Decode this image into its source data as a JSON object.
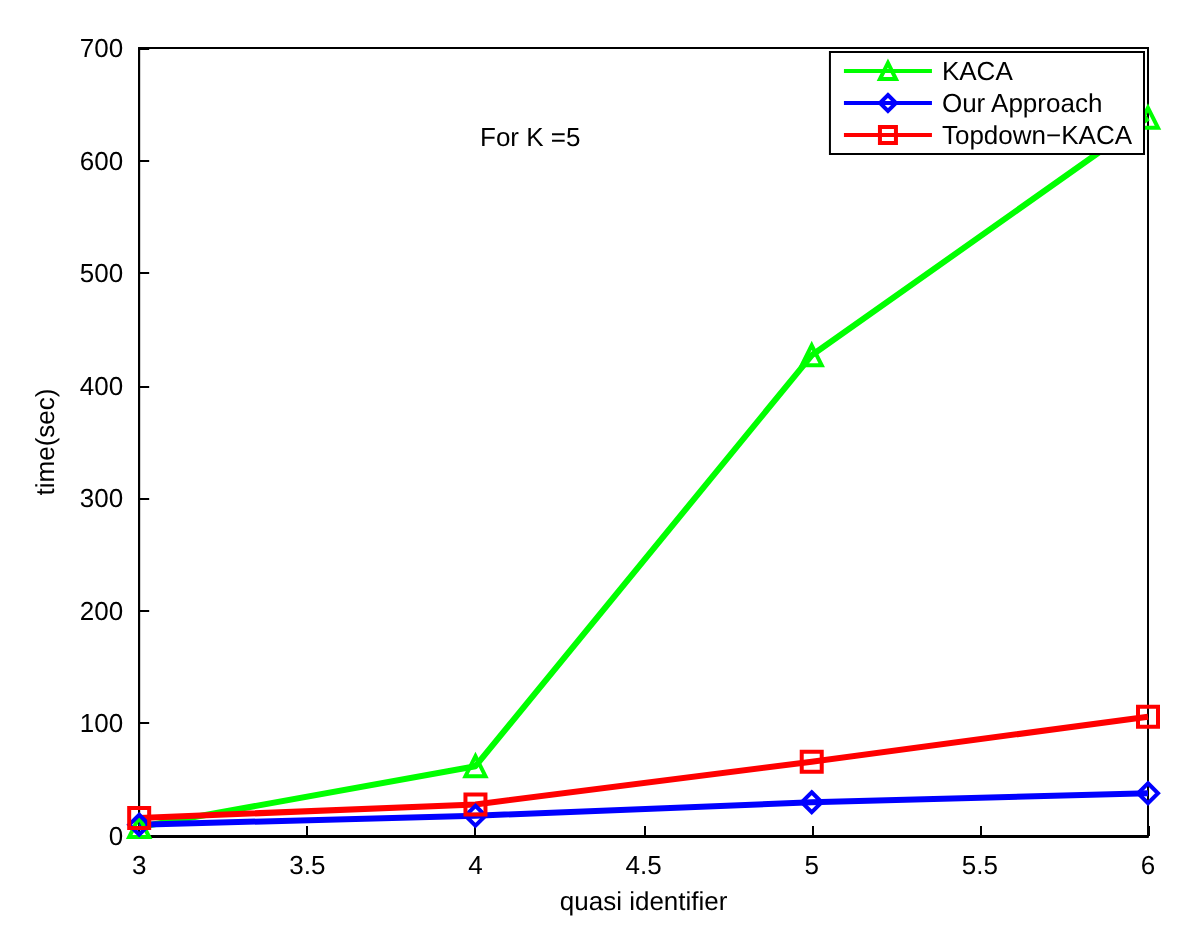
{
  "chart_data": {
    "type": "line",
    "xlabel": "quasi identifier",
    "ylabel": "time(sec)",
    "annotations": [
      "For K =5"
    ],
    "x": [
      3,
      4,
      5,
      6
    ],
    "xlim": [
      3,
      6
    ],
    "xticks": [
      3,
      3.5,
      4,
      4.5,
      5,
      5.5,
      6
    ],
    "ylim": [
      0,
      700
    ],
    "yticks": [
      0,
      100,
      200,
      300,
      400,
      500,
      600,
      700
    ],
    "grid": false,
    "legend": "top right",
    "line_style": "solid",
    "series": [
      {
        "name": "KACA",
        "color": "#00ff00",
        "marker": "triangle",
        "values": [
          8,
          62,
          427,
          638
        ]
      },
      {
        "name": "Our Approach",
        "color": "#0000ff",
        "marker": "diamond",
        "values": [
          10,
          18,
          30,
          38
        ]
      },
      {
        "name": "Topdown−KACA",
        "color": "#ff0000",
        "marker": "square",
        "values": [
          16,
          28,
          66,
          106
        ]
      }
    ]
  }
}
